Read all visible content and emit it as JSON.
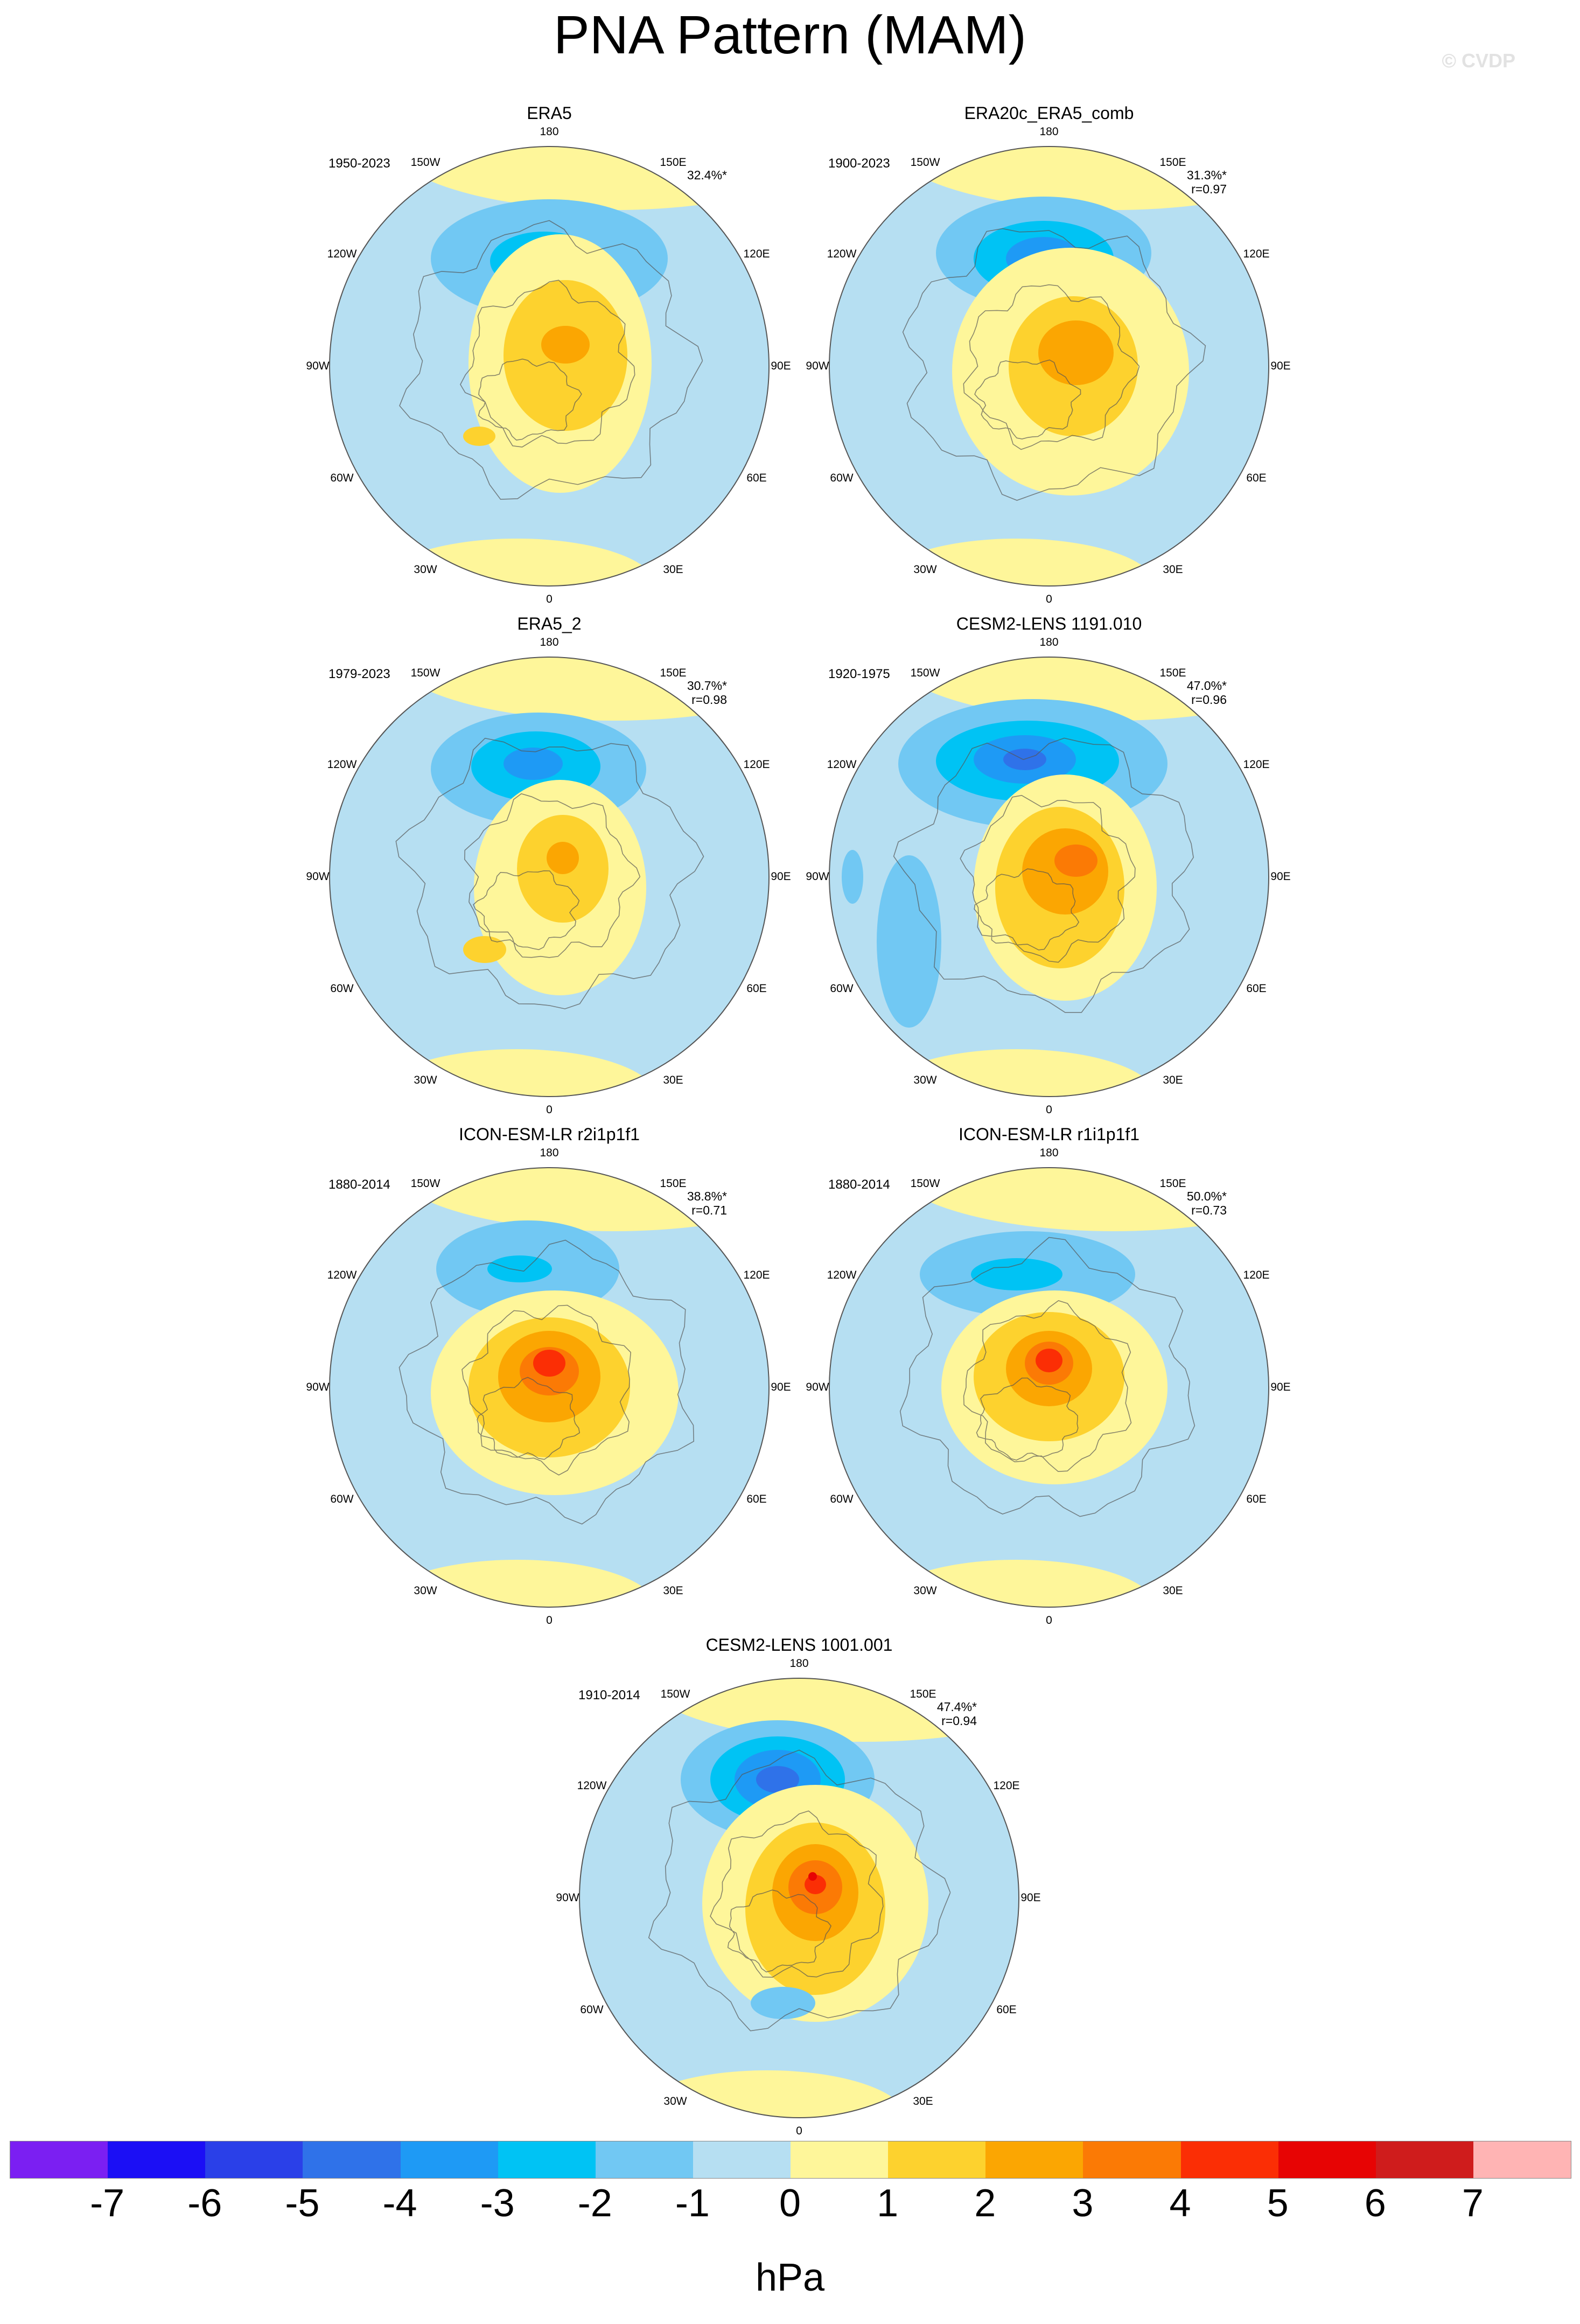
{
  "title": "PNA Pattern (MAM)",
  "copyright": "© CVDP",
  "longitude_labels": {
    "top": "180",
    "top_left": "150W",
    "top_right": "150E",
    "left_upper": "120W",
    "right_upper": "120E",
    "left": "90W",
    "right": "90E",
    "left_lower": "60W",
    "right_lower": "60E",
    "bottom_left": "30W",
    "bottom_right": "30E",
    "bottom": "0"
  },
  "panels": [
    {
      "name": "ERA5",
      "period": "1950-2023",
      "variance": "32.4%*",
      "corr": ""
    },
    {
      "name": "ERA20c_ERA5_comb",
      "period": "1900-2023",
      "variance": "31.3%*",
      "corr": "r=0.97"
    },
    {
      "name": "ERA5_2",
      "period": "1979-2023",
      "variance": "30.7%*",
      "corr": "r=0.98"
    },
    {
      "name": "CESM2-LENS 1191.010",
      "period": "1920-1975",
      "variance": "47.0%*",
      "corr": "r=0.96"
    },
    {
      "name": "ICON-ESM-LR r2i1p1f1",
      "period": "1880-2014",
      "variance": "38.8%*",
      "corr": "r=0.71"
    },
    {
      "name": "ICON-ESM-LR r1i1p1f1",
      "period": "1880-2014",
      "variance": "50.0%*",
      "corr": "r=0.73"
    },
    {
      "name": "CESM2-LENS 1001.001",
      "period": "1910-2014",
      "variance": "47.4%*",
      "corr": "r=0.94"
    }
  ],
  "colorbar": {
    "unit": "hPa",
    "ticks": [
      "-7",
      "-6",
      "-5",
      "-4",
      "-3",
      "-2",
      "-1",
      "0",
      "1",
      "2",
      "3",
      "4",
      "5",
      "6",
      "7"
    ],
    "colors": [
      "#7b1ff2",
      "#1b0ff5",
      "#2a40e8",
      "#2f72e9",
      "#1e9af5",
      "#00c3f4",
      "#71c8f3",
      "#b6dff2",
      "#fef69a",
      "#fdd22e",
      "#fba602",
      "#fb7a05",
      "#fb2e05",
      "#e70404",
      "#cf1c1c",
      "#ffb4b4"
    ]
  },
  "colors": {
    "negative_fill": "#b6dff2",
    "positive_fill": "#fef69a",
    "coastline": "#555555"
  }
}
